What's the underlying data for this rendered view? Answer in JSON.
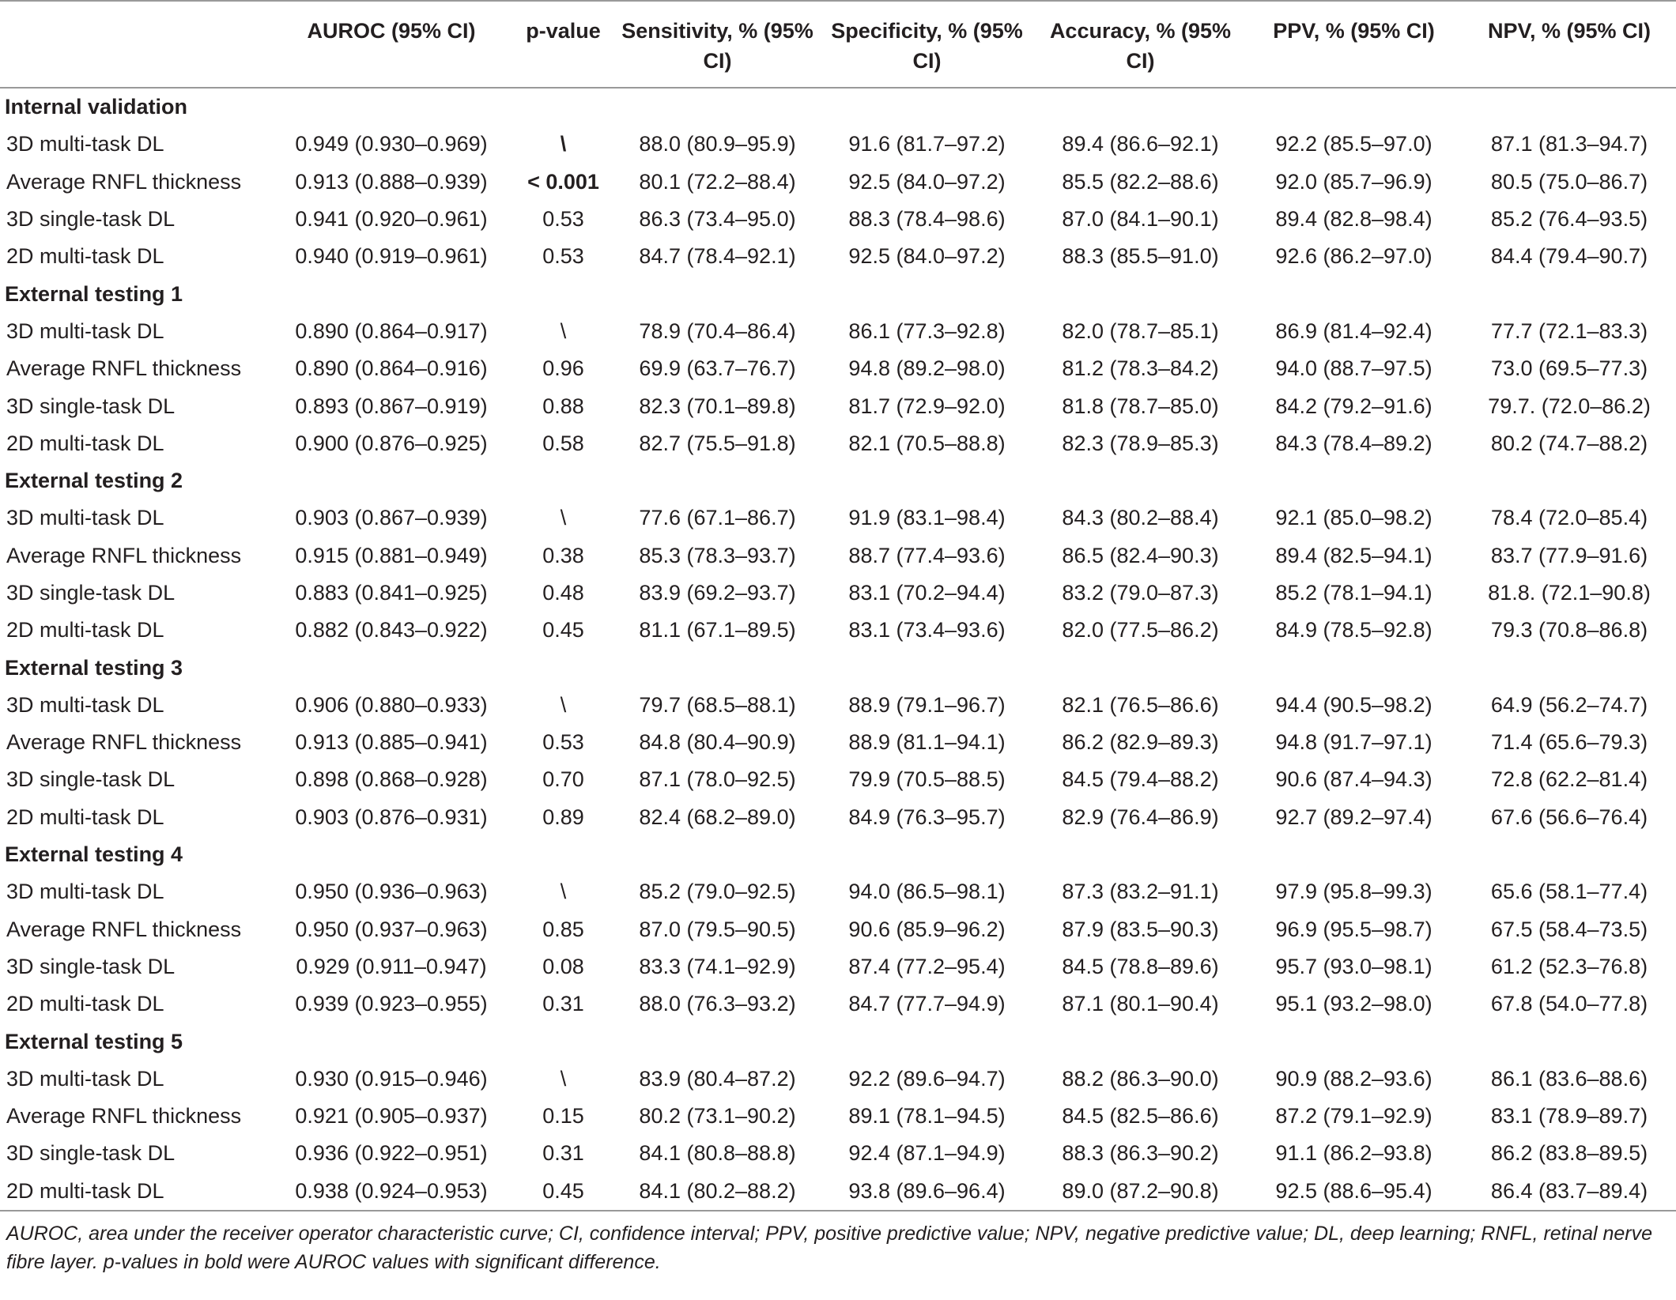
{
  "table": {
    "headers": [
      "AUROC (95% CI)",
      "p-value",
      "Sensitivity, % (95% CI)",
      "Specificity, % (95% CI)",
      "Accuracy, % (95% CI)",
      "PPV, % (95% CI)",
      "NPV, % (95% CI)"
    ],
    "groups": [
      {
        "title": "Internal validation",
        "rows": [
          [
            "3D multi-task DL",
            "0.949 (0.930–0.969)",
            "\\",
            "88.0 (80.9–95.9)",
            "91.6 (81.7–97.2)",
            "89.4 (86.6–92.1)",
            "92.2 (85.5–97.0)",
            "87.1 (81.3–94.7)"
          ],
          [
            "Average RNFL thickness",
            "0.913 (0.888–0.939)",
            "< 0.001",
            "80.1 (72.2–88.4)",
            "92.5 (84.0–97.2)",
            "85.5 (82.2–88.6)",
            "92.0 (85.7–96.9)",
            "80.5 (75.0–86.7)"
          ],
          [
            "3D single-task DL",
            "0.941 (0.920–0.961)",
            "0.53",
            "86.3 (73.4–95.0)",
            "88.3 (78.4–98.6)",
            "87.0 (84.1–90.1)",
            "89.4 (82.8–98.4)",
            "85.2 (76.4–93.5)"
          ],
          [
            "2D multi-task DL",
            "0.940 (0.919–0.961)",
            "0.53",
            "84.7 (78.4–92.1)",
            "92.5 (84.0–97.2)",
            "88.3 (85.5–91.0)",
            "92.6 (86.2–97.0)",
            "84.4 (79.4–90.7)"
          ]
        ]
      },
      {
        "title": "External testing 1",
        "rows": [
          [
            "3D multi-task DL",
            "0.890 (0.864–0.917)",
            "\\",
            "78.9 (70.4–86.4)",
            "86.1 (77.3–92.8)",
            "82.0 (78.7–85.1)",
            "86.9 (81.4–92.4)",
            "77.7 (72.1–83.3)"
          ],
          [
            "Average RNFL thickness",
            "0.890 (0.864–0.916)",
            "0.96",
            "69.9 (63.7–76.7)",
            "94.8 (89.2–98.0)",
            "81.2 (78.3–84.2)",
            "94.0 (88.7–97.5)",
            "73.0 (69.5–77.3)"
          ],
          [
            "3D single-task DL",
            "0.893 (0.867–0.919)",
            "0.88",
            "82.3 (70.1–89.8)",
            "81.7 (72.9–92.0)",
            "81.8 (78.7–85.0)",
            "84.2 (79.2–91.6)",
            "79.7. (72.0–86.2)"
          ],
          [
            "2D multi-task DL",
            "0.900 (0.876–0.925)",
            "0.58",
            "82.7 (75.5–91.8)",
            "82.1 (70.5–88.8)",
            "82.3 (78.9–85.3)",
            "84.3 (78.4–89.2)",
            "80.2 (74.7–88.2)"
          ]
        ]
      },
      {
        "title": "External testing 2",
        "rows": [
          [
            "3D multi-task DL",
            "0.903 (0.867–0.939)",
            "\\",
            "77.6 (67.1–86.7)",
            "91.9 (83.1–98.4)",
            "84.3 (80.2–88.4)",
            "92.1 (85.0–98.2)",
            "78.4 (72.0–85.4)"
          ],
          [
            "Average RNFL thickness",
            "0.915 (0.881–0.949)",
            "0.38",
            "85.3 (78.3–93.7)",
            "88.7 (77.4–93.6)",
            "86.5 (82.4–90.3)",
            "89.4 (82.5–94.1)",
            "83.7 (77.9–91.6)"
          ],
          [
            "3D single-task DL",
            "0.883 (0.841–0.925)",
            "0.48",
            "83.9 (69.2–93.7)",
            "83.1 (70.2–94.4)",
            "83.2 (79.0–87.3)",
            "85.2 (78.1–94.1)",
            "81.8. (72.1–90.8)"
          ],
          [
            "2D multi-task DL",
            "0.882 (0.843–0.922)",
            "0.45",
            "81.1 (67.1–89.5)",
            "83.1 (73.4–93.6)",
            "82.0 (77.5–86.2)",
            "84.9 (78.5–92.8)",
            "79.3 (70.8–86.8)"
          ]
        ]
      },
      {
        "title": "External testing 3",
        "rows": [
          [
            "3D multi-task DL",
            "0.906 (0.880–0.933)",
            "\\",
            "79.7 (68.5–88.1)",
            "88.9 (79.1–96.7)",
            "82.1 (76.5–86.6)",
            "94.4 (90.5–98.2)",
            "64.9 (56.2–74.7)"
          ],
          [
            "Average RNFL thickness",
            "0.913 (0.885–0.941)",
            "0.53",
            "84.8 (80.4–90.9)",
            "88.9 (81.1–94.1)",
            "86.2 (82.9–89.3)",
            "94.8 (91.7–97.1)",
            "71.4 (65.6–79.3)"
          ],
          [
            "3D single-task DL",
            "0.898 (0.868–0.928)",
            "0.70",
            "87.1 (78.0–92.5)",
            "79.9 (70.5–88.5)",
            "84.5 (79.4–88.2)",
            "90.6 (87.4–94.3)",
            "72.8 (62.2–81.4)"
          ],
          [
            "2D multi-task DL",
            "0.903 (0.876–0.931)",
            "0.89",
            "82.4 (68.2–89.0)",
            "84.9 (76.3–95.7)",
            "82.9 (76.4–86.9)",
            "92.7 (89.2–97.4)",
            "67.6 (56.6–76.4)"
          ]
        ]
      },
      {
        "title": "External testing 4",
        "rows": [
          [
            "3D multi-task DL",
            "0.950 (0.936–0.963)",
            "\\",
            "85.2 (79.0–92.5)",
            "94.0 (86.5–98.1)",
            "87.3 (83.2–91.1)",
            "97.9 (95.8–99.3)",
            "65.6 (58.1–77.4)"
          ],
          [
            "Average RNFL thickness",
            "0.950 (0.937–0.963)",
            "0.85",
            "87.0 (79.5–90.5)",
            "90.6 (85.9–96.2)",
            "87.9 (83.5–90.3)",
            "96.9 (95.5–98.7)",
            "67.5 (58.4–73.5)"
          ],
          [
            "3D single-task DL",
            "0.929 (0.911–0.947)",
            "0.08",
            "83.3 (74.1–92.9)",
            "87.4 (77.2–95.4)",
            "84.5 (78.8–89.6)",
            "95.7 (93.0–98.1)",
            "61.2 (52.3–76.8)"
          ],
          [
            "2D multi-task DL",
            "0.939 (0.923–0.955)",
            "0.31",
            "88.0 (76.3–93.2)",
            "84.7 (77.7–94.9)",
            "87.1 (80.1–90.4)",
            "95.1 (93.2–98.0)",
            "67.8 (54.0–77.8)"
          ]
        ]
      },
      {
        "title": "External testing 5",
        "rows": [
          [
            "3D multi-task DL",
            "0.930 (0.915–0.946)",
            "\\",
            "83.9 (80.4–87.2)",
            "92.2 (89.6–94.7)",
            "88.2 (86.3–90.0)",
            "90.9 (88.2–93.6)",
            "86.1 (83.6–88.6)"
          ],
          [
            "Average RNFL thickness",
            "0.921 (0.905–0.937)",
            "0.15",
            "80.2 (73.1–90.2)",
            "89.1 (78.1–94.5)",
            "84.5 (82.5–86.6)",
            "87.2 (79.1–92.9)",
            "83.1 (78.9–89.7)"
          ],
          [
            "3D single-task DL",
            "0.936 (0.922–0.951)",
            "0.31",
            "84.1 (80.8–88.8)",
            "92.4 (87.1–94.9)",
            "88.3 (86.3–90.2)",
            "91.1 (86.2–93.8)",
            "86.2 (83.8–89.5)"
          ],
          [
            "2D multi-task DL",
            "0.938 (0.924–0.953)",
            "0.45",
            "84.1 (80.2–88.2)",
            "93.8 (89.6–96.4)",
            "89.0 (87.2–90.8)",
            "92.5 (88.6–95.4)",
            "86.4 (83.7–89.4)"
          ]
        ]
      }
    ]
  },
  "footnote": "AUROC, area under the receiver operator characteristic curve; CI, confidence interval; PPV, positive predictive value; NPV, negative predictive value; DL, deep learning; RNFL, retinal nerve fibre layer. p-values in bold were AUROC values with significant difference."
}
